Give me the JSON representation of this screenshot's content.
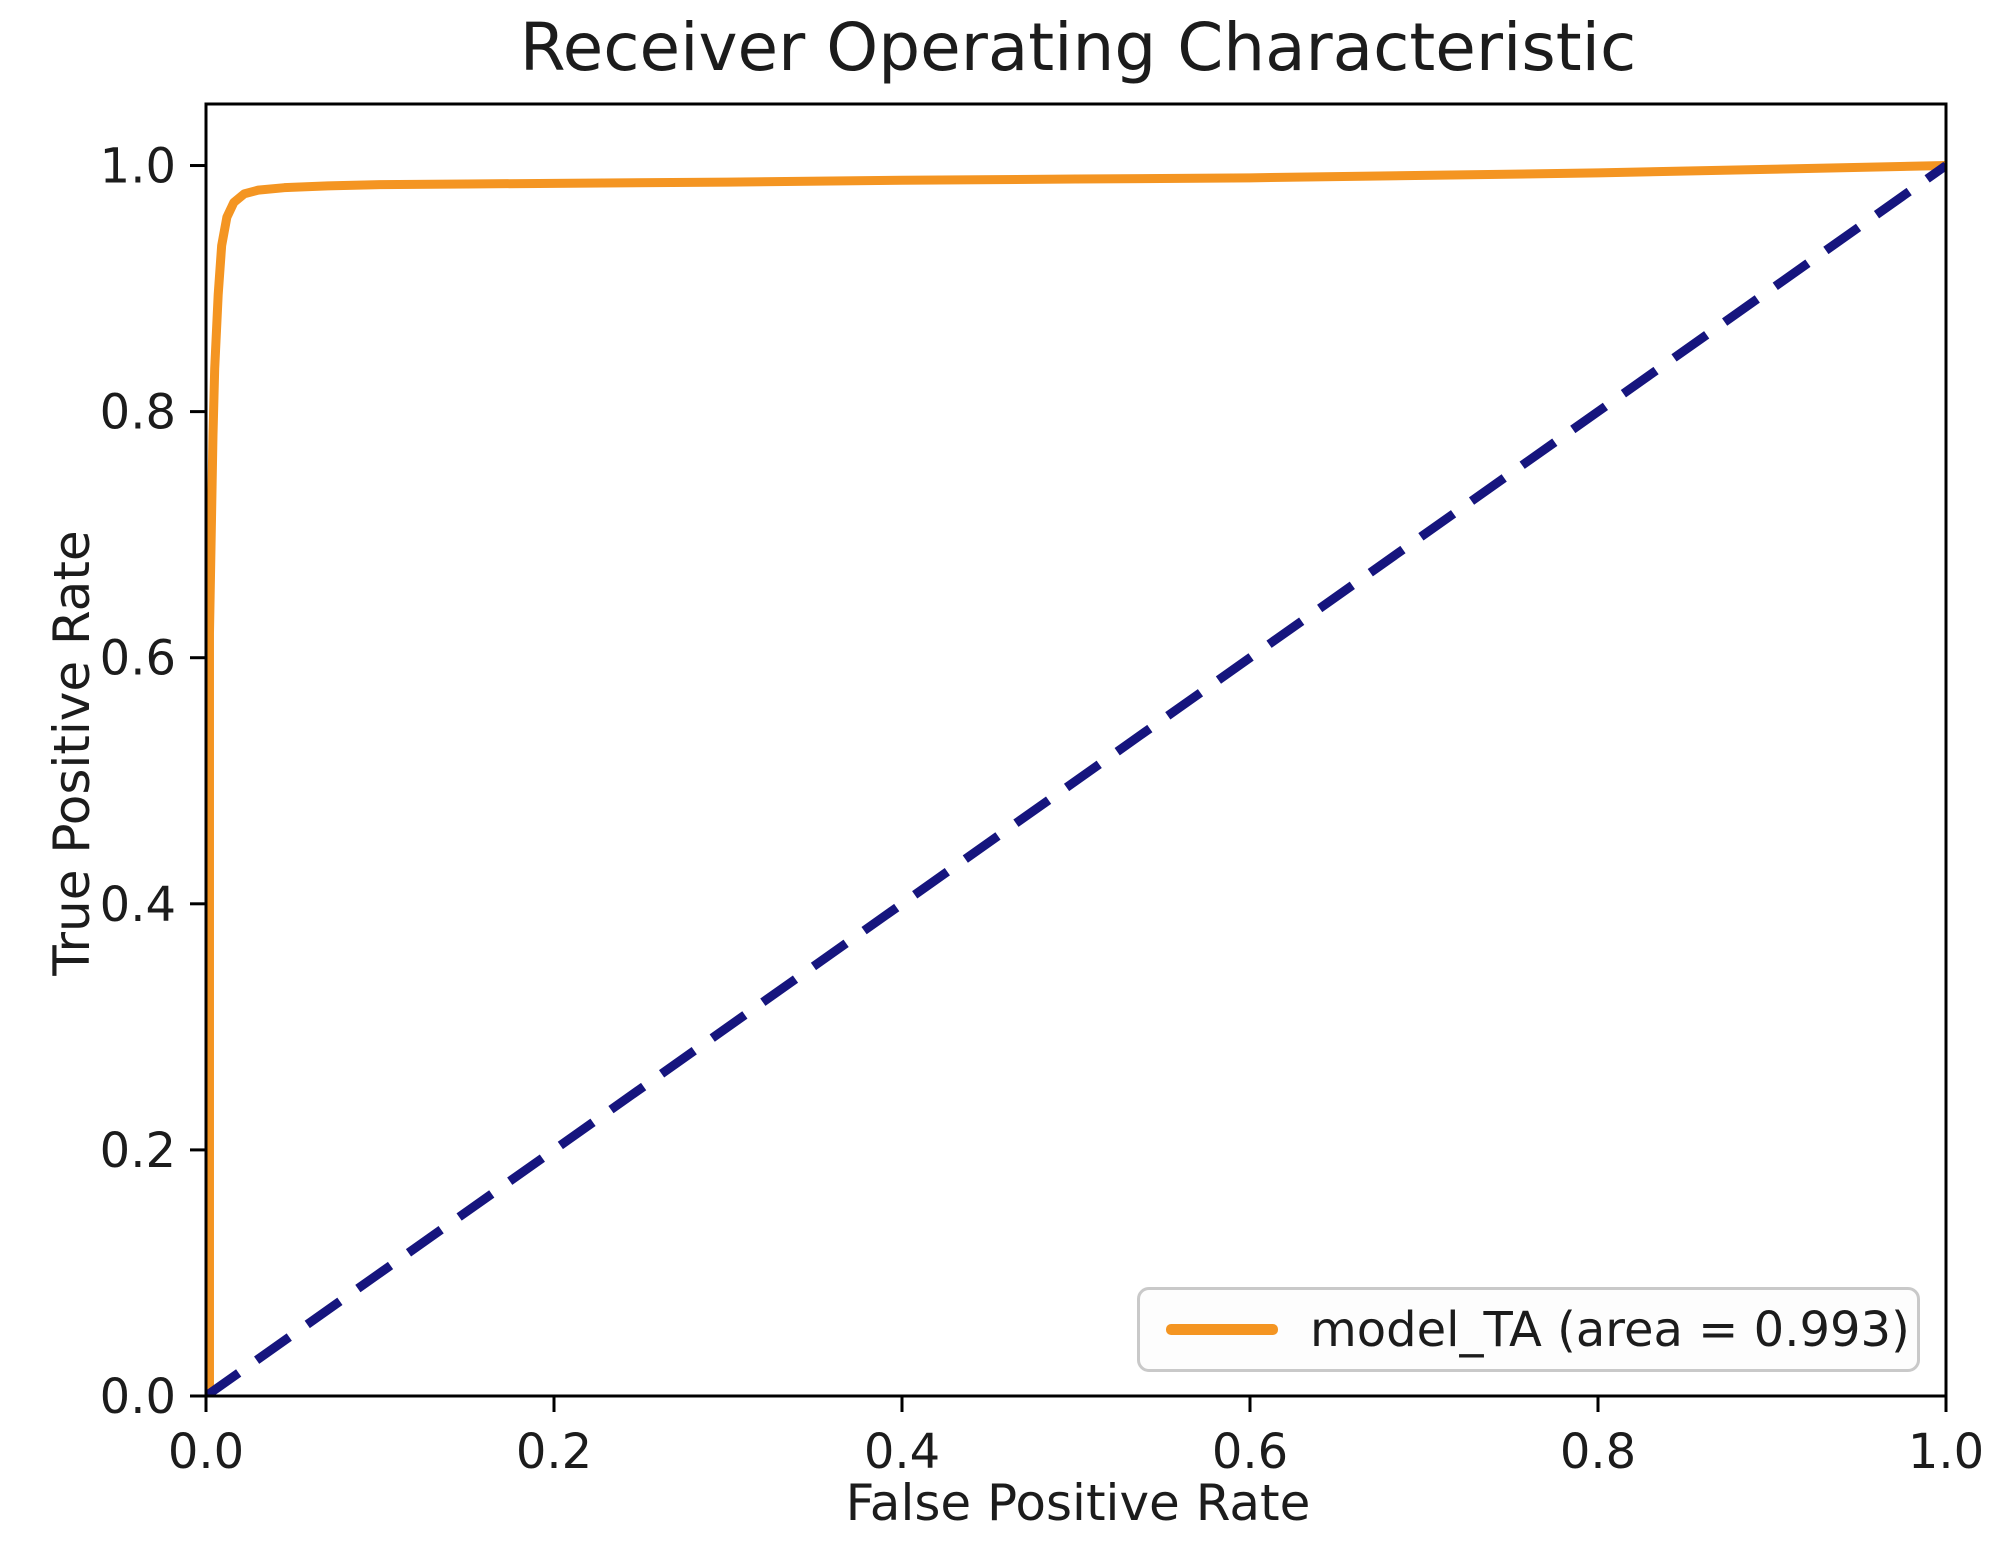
{
  "figure": {
    "title": "Receiver Operating Characteristic",
    "xlabel": "False Positive Rate",
    "ylabel": "True Positive Rate"
  },
  "legend": {
    "position": "lower right",
    "entries": [
      {
        "label": "model_TA (area = 0.993)",
        "color": "#f49522",
        "style": "solid"
      }
    ]
  },
  "colors": {
    "roc_curve": "#f49522",
    "chance_line": "#16157e",
    "spine": "#000000",
    "text": "#1c1c1c",
    "legend_border": "#c9c9c9",
    "background": "#ffffff"
  },
  "chart_data": {
    "type": "line",
    "title": "Receiver Operating Characteristic",
    "xlabel": "False Positive Rate",
    "ylabel": "True Positive Rate",
    "xlim": [
      0.0,
      1.0
    ],
    "ylim": [
      0.0,
      1.05
    ],
    "grid": false,
    "legend_position": "lower right",
    "x_tick_values": [
      0.0,
      0.2,
      0.4,
      0.6,
      0.8,
      1.0
    ],
    "x_tick_labels": [
      "0.0",
      "0.2",
      "0.4",
      "0.6",
      "0.8",
      "1.0"
    ],
    "y_tick_values": [
      0.0,
      0.2,
      0.4,
      0.6,
      0.8,
      1.0
    ],
    "y_tick_labels": [
      "0.0",
      "0.2",
      "0.4",
      "0.6",
      "0.8",
      "1.0"
    ],
    "series": [
      {
        "name": "model_TA (area = 0.993)",
        "color": "#f49522",
        "style": "solid",
        "width": 9,
        "auc": 0.993,
        "x": [
          0.002,
          0.002,
          0.003,
          0.004,
          0.005,
          0.007,
          0.009,
          0.012,
          0.016,
          0.022,
          0.03,
          0.045,
          0.07,
          0.1,
          0.15,
          0.2,
          0.3,
          0.4,
          0.5,
          0.6,
          0.7,
          0.8,
          0.9,
          1.0
        ],
        "y": [
          0.0,
          0.62,
          0.7,
          0.78,
          0.835,
          0.895,
          0.935,
          0.958,
          0.97,
          0.977,
          0.98,
          0.982,
          0.9835,
          0.9845,
          0.985,
          0.9855,
          0.9865,
          0.988,
          0.989,
          0.99,
          0.992,
          0.994,
          0.997,
          1.0
        ]
      },
      {
        "name": "chance-baseline",
        "color": "#16157e",
        "style": "dashed",
        "width": 9,
        "x": [
          0.0,
          1.0
        ],
        "y": [
          0.0,
          1.0
        ]
      }
    ]
  }
}
